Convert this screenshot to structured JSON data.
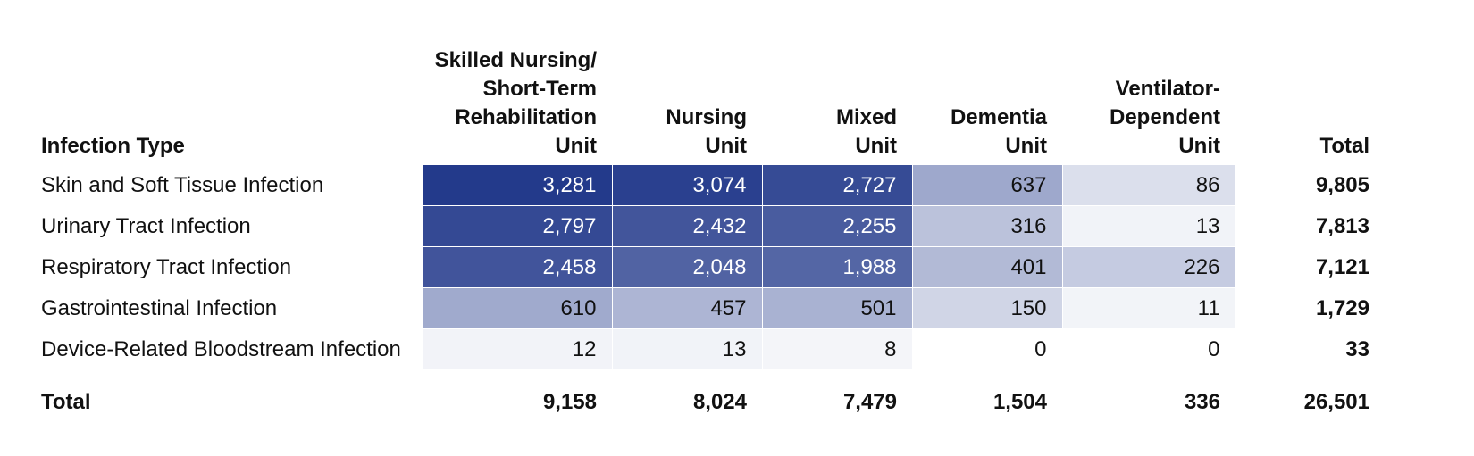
{
  "chart_data": {
    "type": "heatmap",
    "row_header": "Infection Type",
    "total_label": "Total",
    "columns": [
      [
        "Skilled Nursing/",
        "Short-Term",
        "Rehabilitation Unit"
      ],
      [
        "Nursing",
        "Unit"
      ],
      [
        "Mixed",
        "Unit"
      ],
      [
        "Dementia",
        "Unit"
      ],
      [
        "Ventilator-",
        "Dependent",
        "Unit"
      ],
      [
        "Total"
      ]
    ],
    "rows": [
      {
        "label": "Skin and Soft Tissue Infection",
        "values": [
          3281,
          3074,
          2727,
          637,
          86
        ],
        "total": 9805
      },
      {
        "label": "Urinary Tract Infection",
        "values": [
          2797,
          2432,
          2255,
          316,
          13
        ],
        "total": 7813
      },
      {
        "label": "Respiratory Tract Infection",
        "values": [
          2458,
          2048,
          1988,
          401,
          226
        ],
        "total": 7121
      },
      {
        "label": "Gastrointestinal Infection",
        "values": [
          610,
          457,
          501,
          150,
          11
        ],
        "total": 1729
      },
      {
        "label": "Device-Related Bloodstream Infection",
        "values": [
          12,
          13,
          8,
          0,
          0
        ],
        "total": 33
      }
    ],
    "column_totals": [
      9158,
      8024,
      7479,
      1504,
      336
    ],
    "grand_total": 26501,
    "color_scale": {
      "min_color": "#ffffff",
      "max_color": "#233a8b",
      "max_value": 3281
    }
  }
}
